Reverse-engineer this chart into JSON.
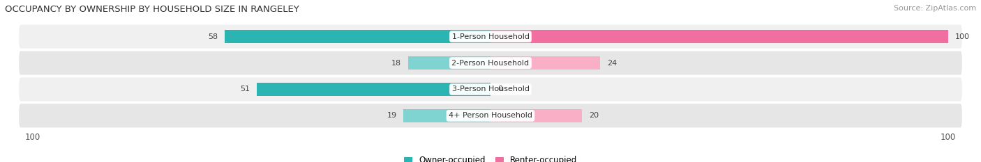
{
  "title": "OCCUPANCY BY OWNERSHIP BY HOUSEHOLD SIZE IN RANGELEY",
  "source": "Source: ZipAtlas.com",
  "categories": [
    "1-Person Household",
    "2-Person Household",
    "3-Person Household",
    "4+ Person Household"
  ],
  "owner_values": [
    58,
    18,
    51,
    19
  ],
  "renter_values": [
    100,
    24,
    0,
    20
  ],
  "owner_color_dark": "#2ab5b2",
  "owner_color_light": "#7fd4d2",
  "renter_color_dark": "#f06fa0",
  "renter_color_light": "#f9afc5",
  "row_bg_light": "#f0f0f0",
  "row_bg_dark": "#e6e6e6",
  "label_fontsize": 8.0,
  "title_fontsize": 9.5,
  "legend_fontsize": 8.5,
  "axis_label_fontsize": 8.5,
  "source_fontsize": 8.0
}
